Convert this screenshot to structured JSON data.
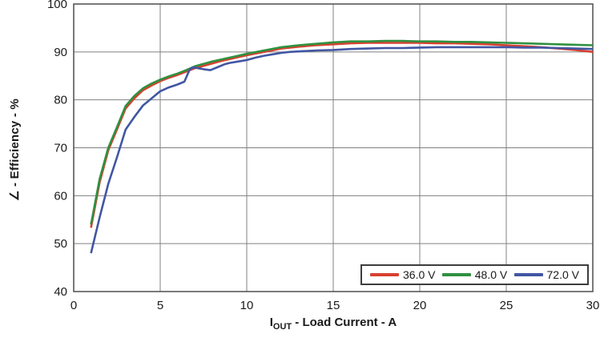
{
  "chart_data": {
    "type": "line",
    "title": "",
    "xlabel_main": "I",
    "xlabel_sub": "OUT",
    "xlabel_rest": " - Load Current - A",
    "ylabel": "∠ - Efficiency - %",
    "xlim": [
      0,
      30
    ],
    "ylim": [
      40,
      100
    ],
    "x_ticks": [
      0,
      5,
      10,
      15,
      20,
      25,
      30
    ],
    "y_ticks": [
      40,
      50,
      60,
      70,
      80,
      90,
      100
    ],
    "grid": true,
    "legend_position": "bottom-right",
    "grid_color": "#808080",
    "border_color": "#4d4d4d",
    "series": [
      {
        "name": "36.0 V",
        "color": "#d8402f",
        "points": [
          [
            1,
            53.3
          ],
          [
            1.5,
            62.8
          ],
          [
            2,
            69.5
          ],
          [
            2.5,
            73.8
          ],
          [
            3,
            78.2
          ],
          [
            3.5,
            80.3
          ],
          [
            4,
            82.0
          ],
          [
            4.5,
            83.0
          ],
          [
            5,
            83.9
          ],
          [
            5.5,
            84.6
          ],
          [
            6,
            85.2
          ],
          [
            6.5,
            85.9
          ],
          [
            7,
            86.6
          ],
          [
            7.5,
            87.1
          ],
          [
            8,
            87.6
          ],
          [
            8.5,
            88.1
          ],
          [
            9,
            88.5
          ],
          [
            9.5,
            88.9
          ],
          [
            10,
            89.3
          ],
          [
            11,
            90.0
          ],
          [
            12,
            90.7
          ],
          [
            13,
            91.1
          ],
          [
            14,
            91.4
          ],
          [
            15,
            91.6
          ],
          [
            16,
            91.8
          ],
          [
            17,
            91.9
          ],
          [
            18,
            91.9
          ],
          [
            19,
            91.9
          ],
          [
            20,
            91.9
          ],
          [
            21,
            91.8
          ],
          [
            22,
            91.8
          ],
          [
            23,
            91.7
          ],
          [
            24,
            91.6
          ],
          [
            25,
            91.4
          ],
          [
            26,
            91.2
          ],
          [
            27,
            91.0
          ],
          [
            28,
            90.7
          ],
          [
            29,
            90.4
          ],
          [
            30,
            90.0
          ]
        ]
      },
      {
        "name": "48.0 V",
        "color": "#2f9140",
        "points": [
          [
            1,
            54.0
          ],
          [
            1.5,
            63.5
          ],
          [
            2,
            70.0
          ],
          [
            2.5,
            74.3
          ],
          [
            3,
            78.7
          ],
          [
            3.5,
            80.8
          ],
          [
            4,
            82.4
          ],
          [
            4.5,
            83.4
          ],
          [
            5,
            84.2
          ],
          [
            5.5,
            84.9
          ],
          [
            6,
            85.5
          ],
          [
            6.5,
            86.2
          ],
          [
            7,
            87.0
          ],
          [
            7.5,
            87.5
          ],
          [
            8,
            88.0
          ],
          [
            8.5,
            88.4
          ],
          [
            9,
            88.8
          ],
          [
            9.5,
            89.2
          ],
          [
            10,
            89.6
          ],
          [
            11,
            90.3
          ],
          [
            12,
            91.0
          ],
          [
            13,
            91.4
          ],
          [
            14,
            91.7
          ],
          [
            15,
            92.0
          ],
          [
            16,
            92.2
          ],
          [
            17,
            92.2
          ],
          [
            18,
            92.3
          ],
          [
            19,
            92.3
          ],
          [
            20,
            92.2
          ],
          [
            21,
            92.2
          ],
          [
            22,
            92.1
          ],
          [
            23,
            92.1
          ],
          [
            24,
            92.0
          ],
          [
            25,
            91.9
          ],
          [
            26,
            91.8
          ],
          [
            27,
            91.7
          ],
          [
            28,
            91.6
          ],
          [
            29,
            91.5
          ],
          [
            30,
            91.4
          ]
        ]
      },
      {
        "name": "72.0 V",
        "color": "#4156a3",
        "points": [
          [
            1,
            48.0
          ],
          [
            1.5,
            55.5
          ],
          [
            2,
            62.5
          ],
          [
            2.5,
            68.0
          ],
          [
            3,
            73.8
          ],
          [
            3.5,
            76.4
          ],
          [
            4,
            78.8
          ],
          [
            4.5,
            80.3
          ],
          [
            5,
            81.8
          ],
          [
            5.5,
            82.6
          ],
          [
            6,
            83.2
          ],
          [
            6.4,
            83.8
          ],
          [
            6.7,
            86.3
          ],
          [
            6.9,
            86.8
          ],
          [
            7.2,
            86.6
          ],
          [
            7.5,
            86.4
          ],
          [
            7.9,
            86.2
          ],
          [
            8.3,
            86.8
          ],
          [
            8.7,
            87.4
          ],
          [
            9,
            87.7
          ],
          [
            9.5,
            88.0
          ],
          [
            10,
            88.3
          ],
          [
            10.5,
            88.8
          ],
          [
            11,
            89.2
          ],
          [
            11.5,
            89.5
          ],
          [
            12,
            89.8
          ],
          [
            12.5,
            90.0
          ],
          [
            13,
            90.1
          ],
          [
            14,
            90.3
          ],
          [
            15,
            90.4
          ],
          [
            16,
            90.6
          ],
          [
            17,
            90.7
          ],
          [
            18,
            90.8
          ],
          [
            19,
            90.8
          ],
          [
            20,
            90.9
          ],
          [
            21,
            91.0
          ],
          [
            22,
            91.0
          ],
          [
            23,
            91.0
          ],
          [
            24,
            91.0
          ],
          [
            25,
            91.0
          ],
          [
            26,
            90.9
          ],
          [
            27,
            90.9
          ],
          [
            28,
            90.8
          ],
          [
            29,
            90.7
          ],
          [
            30,
            90.6
          ]
        ]
      }
    ]
  }
}
